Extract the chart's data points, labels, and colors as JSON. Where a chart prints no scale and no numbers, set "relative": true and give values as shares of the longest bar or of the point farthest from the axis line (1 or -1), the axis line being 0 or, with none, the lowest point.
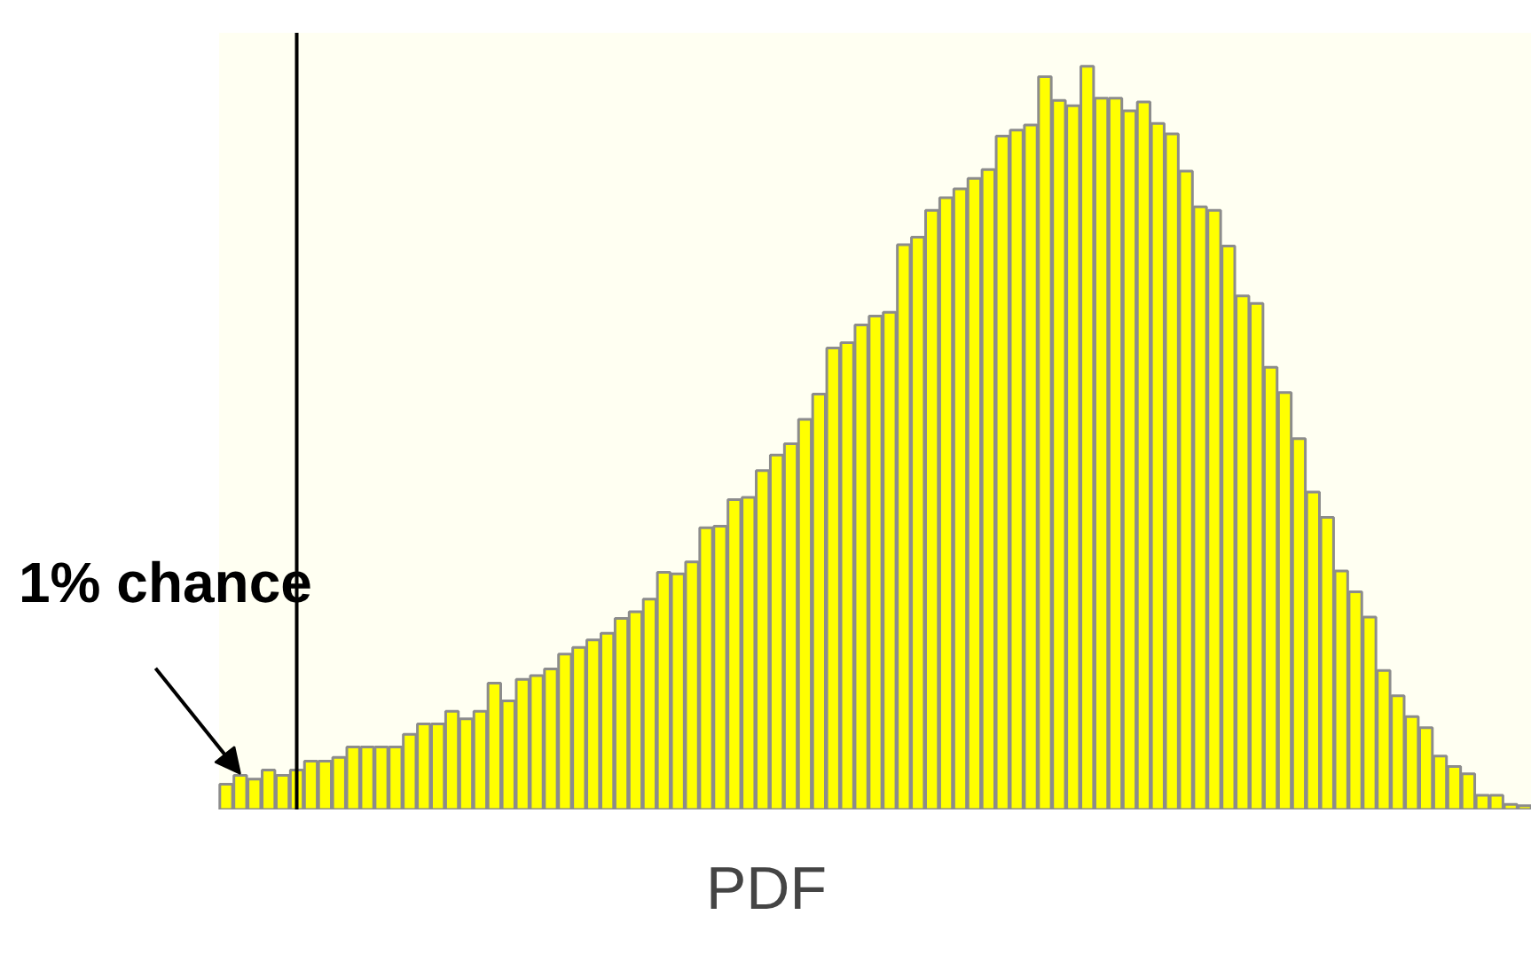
{
  "chart_data": {
    "type": "bar",
    "relative": true,
    "xlabel": "PDF",
    "categories": [
      null,
      null,
      null,
      null,
      null,
      null,
      null,
      null,
      null,
      null,
      null,
      null,
      null,
      null,
      null,
      null,
      null,
      null,
      null,
      null,
      null,
      null,
      null,
      null,
      null,
      null,
      null,
      null,
      null,
      null,
      null,
      null,
      null,
      null,
      null,
      null,
      null,
      null,
      null,
      null,
      null,
      null,
      null,
      null,
      null,
      null,
      null,
      null,
      null,
      null,
      null,
      null,
      null,
      null,
      null,
      null,
      null,
      null,
      null,
      null,
      null,
      null,
      null,
      null,
      null,
      null,
      null,
      null,
      null,
      null,
      null,
      null,
      null,
      null,
      null,
      null,
      null,
      null,
      null,
      null,
      null,
      null,
      null,
      null,
      null,
      null,
      null,
      null,
      null,
      null,
      null,
      null,
      null
    ],
    "values": [
      0.034,
      0.046,
      0.041,
      0.053,
      0.046,
      0.053,
      0.065,
      0.065,
      0.07,
      0.084,
      0.084,
      0.084,
      0.084,
      0.101,
      0.115,
      0.115,
      0.132,
      0.122,
      0.132,
      0.17,
      0.146,
      0.175,
      0.18,
      0.189,
      0.209,
      0.218,
      0.228,
      0.237,
      0.257,
      0.266,
      0.283,
      0.319,
      0.317,
      0.333,
      0.379,
      0.381,
      0.417,
      0.42,
      0.456,
      0.477,
      0.492,
      0.525,
      0.559,
      0.621,
      0.628,
      0.652,
      0.664,
      0.669,
      0.76,
      0.77,
      0.806,
      0.823,
      0.835,
      0.849,
      0.861,
      0.906,
      0.914,
      0.921,
      0.986,
      0.954,
      0.947,
      1,
      0.957,
      0.957,
      0.94,
      0.952,
      0.923,
      0.909,
      0.859,
      0.811,
      0.806,
      0.758,
      0.691,
      0.681,
      0.595,
      0.561,
      0.499,
      0.427,
      0.393,
      0.321,
      0.293,
      0.259,
      0.187,
      0.153,
      0.125,
      0.11,
      0.072,
      0.058,
      0.048,
      0.019,
      0.019,
      0.007,
      0.005
    ],
    "color": "#ffff00",
    "annotations": [
      "1% chance"
    ],
    "grid": false
  }
}
